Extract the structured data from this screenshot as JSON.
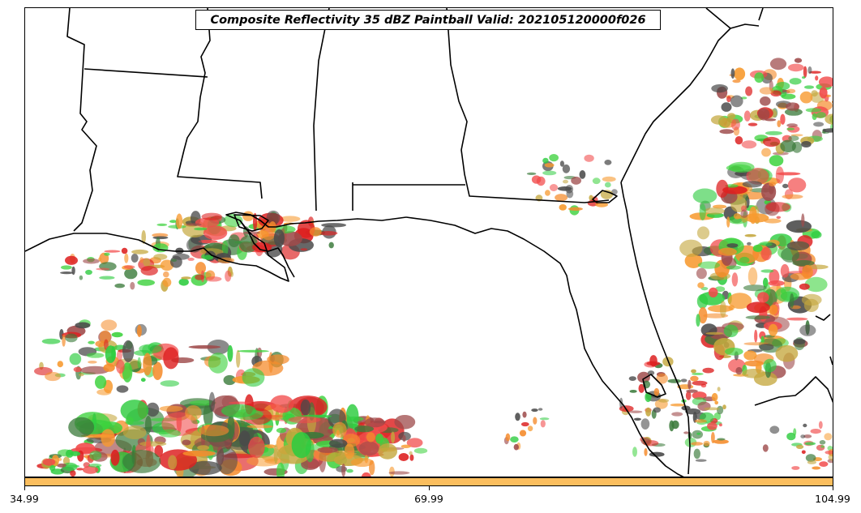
{
  "title": "Composite Reflectivity 35 dBZ Paintball Valid: 202105120000f026",
  "colorbar": {
    "color": "#fbbe5e",
    "ticks": [
      {
        "label": "34.99",
        "value": 34.99
      },
      {
        "label": "69.99",
        "value": 69.99
      },
      {
        "label": "104.99",
        "value": 104.99
      }
    ],
    "range": [
      34.99,
      104.99
    ]
  },
  "paint_colors": [
    "#f24a4a",
    "#f79a2f",
    "#3dd23d",
    "#9e4a4a",
    "#3a7a3a",
    "#4a4a4a",
    "#c4a63c",
    "#dd2020",
    "#f58c2c",
    "#2ecc40"
  ],
  "icons": {
    "coastline": "coastline-lines",
    "state-borders": "state-border-lines"
  }
}
